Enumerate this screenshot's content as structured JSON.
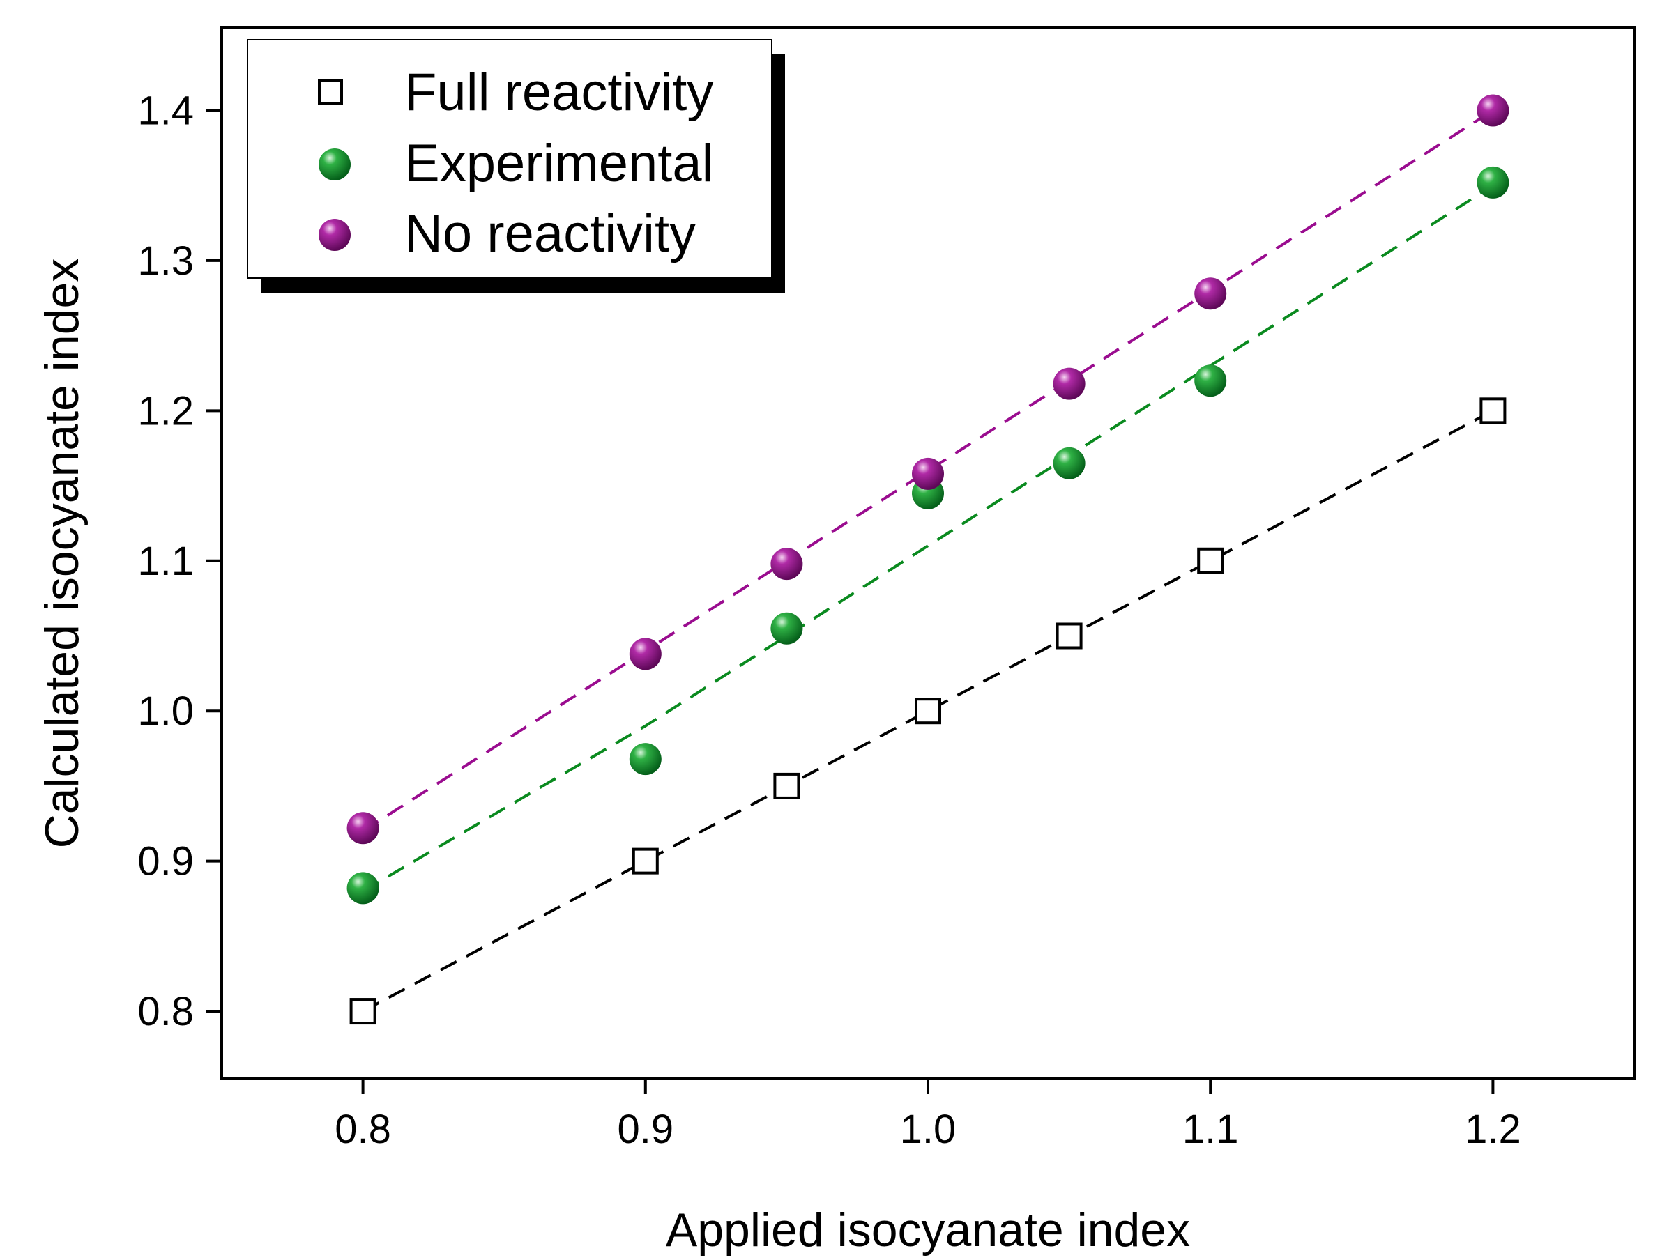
{
  "chart_data": {
    "type": "scatter",
    "xlabel": "Applied isocyanate index",
    "ylabel": "Calculated isocyanate index",
    "xlim": [
      0.75,
      1.25
    ],
    "ylim": [
      0.755,
      1.455
    ],
    "xticks": [
      "0.8",
      "0.9",
      "1.0",
      "1.1",
      "1.2"
    ],
    "yticks": [
      "0.8",
      "0.9",
      "1.0",
      "1.1",
      "1.2",
      "1.3",
      "1.4"
    ],
    "legend_position": "top-left",
    "grid": false,
    "x": [
      0.8,
      0.9,
      0.95,
      1.0,
      1.05,
      1.1,
      1.2
    ],
    "series": [
      {
        "name": "Full reactivity",
        "marker": "open-square",
        "color": "#000000",
        "values": [
          0.8,
          0.9,
          0.95,
          1.0,
          1.05,
          1.1,
          1.2
        ],
        "fit": [
          0.8,
          0.9,
          0.95,
          1.0,
          1.05,
          1.1,
          1.2
        ]
      },
      {
        "name": "Experimental",
        "marker": "sphere",
        "color": "#0a8a1f",
        "values": [
          0.882,
          0.968,
          1.055,
          1.145,
          1.165,
          1.22,
          1.352
        ],
        "fit": [
          0.88,
          0.99,
          1.05,
          1.11,
          1.17,
          1.23,
          1.35
        ]
      },
      {
        "name": "No reactivity",
        "marker": "sphere",
        "color": "#9a0c8f",
        "values": [
          0.922,
          1.038,
          1.098,
          1.158,
          1.218,
          1.278,
          1.4
        ],
        "fit": [
          0.92,
          1.04,
          1.1,
          1.16,
          1.22,
          1.28,
          1.4
        ]
      }
    ]
  }
}
